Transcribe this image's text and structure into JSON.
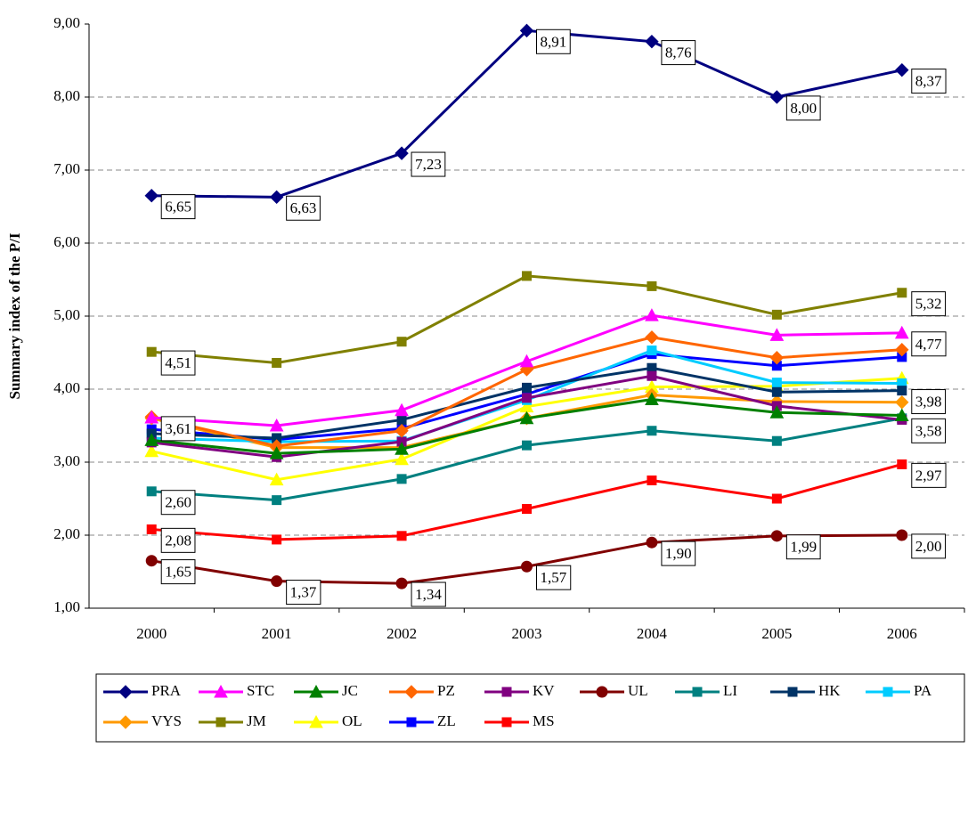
{
  "chart_data": {
    "type": "line",
    "y_label": "Summary index of the P/I",
    "categories": [
      "2000",
      "2001",
      "2002",
      "2003",
      "2004",
      "2005",
      "2006"
    ],
    "ylim": [
      1,
      9
    ],
    "yticks": [
      {
        "value": 1,
        "label": "1,00"
      },
      {
        "value": 2,
        "label": "2,00"
      },
      {
        "value": 3,
        "label": "3,00"
      },
      {
        "value": 4,
        "label": "4,00"
      },
      {
        "value": 5,
        "label": "5,00"
      },
      {
        "value": 6,
        "label": "6,00"
      },
      {
        "value": 7,
        "label": "7,00"
      },
      {
        "value": 8,
        "label": "8,00"
      },
      {
        "value": 9,
        "label": "9,00"
      }
    ],
    "grid": true,
    "legend": "bottom",
    "series": [
      {
        "name": "PRA",
        "color": "#000080",
        "marker": "diamond",
        "values": [
          6.65,
          6.63,
          7.23,
          8.91,
          8.76,
          8.0,
          8.37
        ],
        "value_labels": [
          "6,65",
          "6,63",
          "7,23",
          "8,91",
          "8,76",
          "8,00",
          "8,37"
        ]
      },
      {
        "name": "STC",
        "color": "#ff00ff",
        "marker": "triangle",
        "values": [
          3.61,
          3.5,
          3.71,
          4.38,
          5.01,
          4.74,
          4.77
        ],
        "value_labels": [
          "3,61",
          null,
          null,
          null,
          null,
          null,
          "4,77"
        ]
      },
      {
        "name": "JC",
        "color": "#008000",
        "marker": "triangle",
        "values": [
          3.3,
          3.12,
          3.18,
          3.6,
          3.86,
          3.68,
          3.64
        ]
      },
      {
        "name": "PZ",
        "color": "#ff6600",
        "marker": "diamond",
        "values": [
          3.62,
          3.22,
          3.43,
          4.27,
          4.71,
          4.43,
          4.54
        ]
      },
      {
        "name": "KV",
        "color": "#800080",
        "marker": "square",
        "values": [
          3.27,
          3.07,
          3.28,
          3.88,
          4.18,
          3.77,
          3.58
        ],
        "value_labels": [
          null,
          null,
          null,
          null,
          null,
          null,
          "3,58"
        ]
      },
      {
        "name": "UL",
        "color": "#800000",
        "marker": "circle",
        "values": [
          1.65,
          1.37,
          1.34,
          1.57,
          1.9,
          1.99,
          2.0
        ],
        "value_labels": [
          "1,65",
          "1,37",
          "1,34",
          "1,57",
          "1,90",
          "1,99",
          "2,00"
        ]
      },
      {
        "name": "LI",
        "color": "#008080",
        "marker": "square",
        "values": [
          2.6,
          2.48,
          2.77,
          3.23,
          3.43,
          3.29,
          3.6
        ],
        "value_labels": [
          "2,60",
          null,
          null,
          null,
          null,
          null,
          null
        ]
      },
      {
        "name": "HK",
        "color": "#003366",
        "marker": "square",
        "values": [
          3.39,
          3.33,
          3.58,
          4.02,
          4.29,
          3.96,
          3.98
        ],
        "value_labels": [
          null,
          null,
          null,
          null,
          null,
          null,
          "3,98"
        ]
      },
      {
        "name": "PA",
        "color": "#00ccff",
        "marker": "square",
        "values": [
          3.33,
          3.28,
          3.29,
          3.85,
          4.53,
          4.09,
          4.08
        ]
      },
      {
        "name": "VYS",
        "color": "#ff9900",
        "marker": "diamond",
        "values": [
          3.6,
          3.2,
          3.2,
          3.6,
          3.92,
          3.83,
          3.82
        ]
      },
      {
        "name": "JM",
        "color": "#808000",
        "marker": "square",
        "values": [
          4.51,
          4.36,
          4.65,
          5.55,
          5.41,
          5.02,
          5.32
        ],
        "value_labels": [
          "4,51",
          null,
          null,
          null,
          null,
          null,
          "5,32"
        ]
      },
      {
        "name": "OL",
        "color": "#ffff00",
        "marker": "triangle",
        "values": [
          3.15,
          2.76,
          3.04,
          3.76,
          4.03,
          4.04,
          4.15
        ]
      },
      {
        "name": "ZL",
        "color": "#0000ff",
        "marker": "square",
        "values": [
          3.45,
          3.31,
          3.46,
          3.93,
          4.48,
          4.32,
          4.44
        ]
      },
      {
        "name": "MS",
        "color": "#ff0000",
        "marker": "square",
        "values": [
          2.08,
          1.94,
          1.99,
          2.36,
          2.75,
          2.5,
          2.97
        ],
        "value_labels": [
          "2,08",
          null,
          null,
          null,
          null,
          null,
          "2,97"
        ]
      }
    ]
  }
}
